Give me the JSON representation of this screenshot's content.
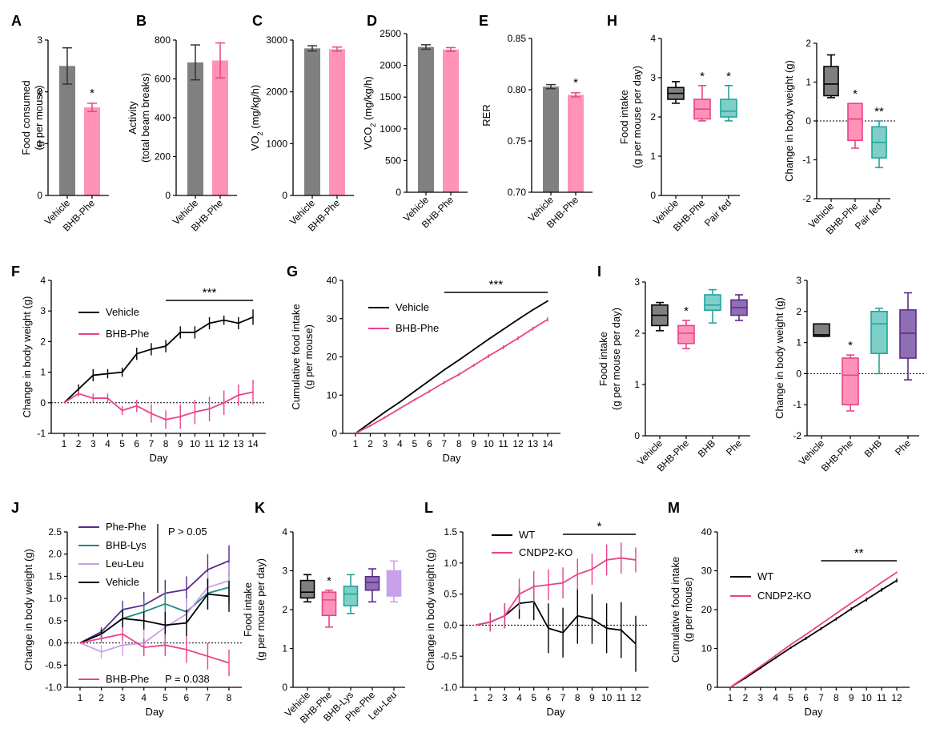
{
  "colors": {
    "vehicle": "#808080",
    "bhb_phe": "#ff93b7",
    "bhb_phe_dark": "#e8438a",
    "pair_fed": "#21a39d",
    "pair_fed_light": "#7fcfc9",
    "phe_dark": "#5b2a8c",
    "phe": "#8f6fb3",
    "leu_leu": "#c9a0ec",
    "bhb_lys": "#1f8a86",
    "wt": "#000000",
    "cndp2": "#e8438a"
  },
  "chart_data": [
    {
      "panel": "A",
      "type": "bar",
      "categories": [
        "Vehicle",
        "BHB-Phe"
      ],
      "values": [
        2.5,
        1.7
      ],
      "errors": [
        0.35,
        0.08
      ],
      "ylabel": "Food consumed (g per mouse)",
      "ylim": [
        0,
        3
      ],
      "yticks": [
        0,
        1,
        2,
        3
      ],
      "sig": [
        "",
        "*"
      ]
    },
    {
      "panel": "B",
      "type": "bar",
      "categories": [
        "Vehicle",
        "BHB-Phe"
      ],
      "values": [
        685,
        695
      ],
      "errors": [
        90,
        90
      ],
      "ylabel": "Activity (total beam breaks)",
      "ylim": [
        0,
        800
      ],
      "yticks": [
        0,
        200,
        400,
        600,
        800
      ],
      "sig": [
        "",
        ""
      ]
    },
    {
      "panel": "C",
      "type": "bar",
      "categories": [
        "Vehicle",
        "BHB-Phe"
      ],
      "values": [
        2840,
        2825
      ],
      "errors": [
        50,
        40
      ],
      "ylabel": "VO₂ (mg/kg/h)",
      "ylim": [
        0,
        3000
      ],
      "yticks": [
        0,
        1000,
        2000,
        3000
      ],
      "sig": [
        "",
        ""
      ]
    },
    {
      "panel": "D",
      "type": "bar",
      "categories": [
        "Vehicle",
        "BHB-Phe"
      ],
      "values": [
        2290,
        2250
      ],
      "errors": [
        35,
        30
      ],
      "ylabel": "VCO₂ (mg/kg/h)",
      "ylim": [
        0,
        2500
      ],
      "yticks": [
        0,
        500,
        1000,
        1500,
        2000,
        2500
      ],
      "sig": [
        "",
        ""
      ]
    },
    {
      "panel": "E",
      "type": "bar",
      "categories": [
        "Vehicle",
        "BHB-Phe"
      ],
      "values": [
        0.803,
        0.795
      ],
      "errors": [
        0.002,
        0.002
      ],
      "ylabel": "RER",
      "ylim": [
        0.7,
        0.85
      ],
      "yticks": [
        0.7,
        0.75,
        0.8,
        0.85
      ],
      "sig": [
        "",
        "*"
      ]
    },
    {
      "panel": "H1",
      "type": "box",
      "categories": [
        "Vehicle",
        "BHB-Phe",
        "Pair fed"
      ],
      "boxes": [
        [
          2.35,
          2.45,
          2.6,
          2.75,
          2.9
        ],
        [
          1.9,
          1.95,
          2.2,
          2.45,
          2.8
        ],
        [
          1.9,
          2.0,
          2.15,
          2.45,
          2.8
        ]
      ],
      "ylabel": "Food intake (g per mouse per day)",
      "ylim": [
        0,
        4
      ],
      "yticks": [
        0,
        1,
        2,
        3,
        4
      ],
      "sig": [
        "",
        "*",
        "*"
      ]
    },
    {
      "panel": "H2",
      "type": "box",
      "categories": [
        "Vehicle",
        "BHB-Phe",
        "Pair fed"
      ],
      "boxes": [
        [
          0.6,
          0.65,
          0.95,
          1.4,
          1.7
        ],
        [
          -0.7,
          -0.5,
          0.05,
          0.45,
          0.45
        ],
        [
          -1.2,
          -0.95,
          -0.55,
          -0.15,
          0.0
        ]
      ],
      "ylabel": "Change in body weight (g)",
      "ylim": [
        -2,
        2
      ],
      "yticks": [
        -2,
        -1,
        0,
        1,
        2
      ],
      "sig": [
        "",
        "*",
        "**"
      ]
    },
    {
      "panel": "F",
      "type": "line",
      "x": [
        1,
        2,
        3,
        4,
        5,
        6,
        7,
        8,
        9,
        10,
        11,
        12,
        13,
        14
      ],
      "series": [
        {
          "name": "Vehicle",
          "values": [
            0,
            0.45,
            0.9,
            0.95,
            1.0,
            1.6,
            1.75,
            1.85,
            2.3,
            2.3,
            2.6,
            2.7,
            2.6,
            2.8
          ],
          "err": [
            0,
            0.15,
            0.2,
            0.15,
            0.15,
            0.2,
            0.2,
            0.2,
            0.2,
            0.2,
            0.2,
            0.15,
            0.2,
            0.25
          ]
        },
        {
          "name": "BHB-Phe",
          "values": [
            0,
            0.3,
            0.15,
            0.15,
            -0.25,
            -0.1,
            -0.35,
            -0.55,
            -0.45,
            -0.3,
            -0.2,
            0.0,
            0.25,
            0.35
          ],
          "err": [
            0,
            0.1,
            0.15,
            0.15,
            0.15,
            0.2,
            0.3,
            0.3,
            0.4,
            0.4,
            0.4,
            0.4,
            0.35,
            0.4
          ]
        }
      ],
      "xlabel": "Day",
      "ylabel": "Change in body weight (g)",
      "ylim": [
        -1,
        4
      ],
      "yticks": [
        -1,
        0,
        1,
        2,
        3,
        4
      ],
      "sig": "***",
      "sig_from": 8,
      "sig_to": 14
    },
    {
      "panel": "G",
      "type": "line",
      "x": [
        1,
        2,
        3,
        4,
        5,
        6,
        7,
        8,
        9,
        10,
        11,
        12,
        13,
        14
      ],
      "series": [
        {
          "name": "Vehicle",
          "values": [
            0,
            2.8,
            5.6,
            8.2,
            11.0,
            13.8,
            16.6,
            19.2,
            21.9,
            24.6,
            27.2,
            29.8,
            32.3,
            34.6
          ],
          "err": [
            0,
            0.2,
            0.2,
            0.2,
            0.2,
            0.2,
            0.2,
            0.2,
            0.2,
            0.2,
            0.2,
            0.2,
            0.2,
            0.2
          ]
        },
        {
          "name": "BHB-Phe",
          "values": [
            0,
            2.0,
            4.2,
            6.5,
            8.8,
            11.0,
            13.3,
            15.4,
            17.8,
            20.2,
            22.5,
            24.9,
            27.4,
            29.8
          ],
          "err": [
            0,
            0.3,
            0.3,
            0.3,
            0.3,
            0.4,
            0.4,
            0.4,
            0.4,
            0.5,
            0.5,
            0.5,
            0.5,
            0.6
          ]
        }
      ],
      "xlabel": "Day",
      "ylabel": "Cumulative food intake (g per mouse)",
      "ylim": [
        0,
        40
      ],
      "yticks": [
        0,
        10,
        20,
        30,
        40
      ],
      "sig": "***",
      "sig_from": 7,
      "sig_to": 14
    },
    {
      "panel": "I1",
      "type": "box",
      "categories": [
        "Vehicle",
        "BHB-Phe",
        "BHB",
        "Phe"
      ],
      "boxes": [
        [
          2.05,
          2.15,
          2.35,
          2.55,
          2.6
        ],
        [
          1.7,
          1.8,
          2.0,
          2.15,
          2.25
        ],
        [
          2.2,
          2.45,
          2.55,
          2.75,
          2.85
        ],
        [
          2.25,
          2.35,
          2.5,
          2.65,
          2.75
        ]
      ],
      "ylabel": "Food intake (g per mouse per day)",
      "ylim": [
        0,
        3
      ],
      "yticks": [
        0,
        1,
        2,
        3
      ],
      "sig": [
        "",
        "*",
        "",
        ""
      ]
    },
    {
      "panel": "I2",
      "type": "box",
      "categories": [
        "Vehicle",
        "BHB-Phe",
        "BHB",
        "Phe"
      ],
      "boxes": [
        [
          1.2,
          1.2,
          1.25,
          1.6,
          1.6
        ],
        [
          -1.2,
          -1.0,
          -0.05,
          0.5,
          0.6
        ],
        [
          0.0,
          0.65,
          1.6,
          2.0,
          2.1
        ],
        [
          -0.2,
          0.5,
          1.3,
          2.05,
          2.6
        ]
      ],
      "ylabel": "Change in body weight (g)",
      "ylim": [
        -2,
        3
      ],
      "yticks": [
        -2,
        -1,
        0,
        1,
        2,
        3
      ],
      "sig": [
        "",
        "*",
        "",
        ""
      ]
    },
    {
      "panel": "J",
      "type": "line",
      "x": [
        1,
        2,
        3,
        4,
        5,
        6,
        7,
        8
      ],
      "series": [
        {
          "name": "Phe-Phe",
          "values": [
            0,
            0.25,
            0.75,
            0.85,
            1.12,
            1.2,
            1.65,
            1.85
          ],
          "err": [
            0,
            0.1,
            0.2,
            0.3,
            0.3,
            0.3,
            0.35,
            0.35
          ]
        },
        {
          "name": "BHB-Lys",
          "values": [
            0,
            0.2,
            0.55,
            0.7,
            0.88,
            0.7,
            1.12,
            1.25
          ],
          "err": [
            0,
            0.1,
            0.25,
            0.3,
            0.3,
            0.3,
            0.35,
            0.35
          ]
        },
        {
          "name": "Leu-Leu",
          "values": [
            0,
            -0.2,
            -0.05,
            0.0,
            0.35,
            0.65,
            1.25,
            1.4
          ],
          "err": [
            0,
            0.15,
            0.25,
            0.3,
            0.35,
            0.35,
            0.35,
            0.4
          ]
        },
        {
          "name": "Vehicle",
          "values": [
            0,
            0.2,
            0.55,
            0.5,
            0.4,
            0.45,
            1.1,
            1.05
          ],
          "err": [
            0,
            0.1,
            0.2,
            0.2,
            0.3,
            0.3,
            0.35,
            0.35
          ]
        },
        {
          "name": "BHB-Phe",
          "values": [
            0,
            0.1,
            0.2,
            -0.1,
            -0.05,
            -0.15,
            -0.3,
            -0.45
          ],
          "err": [
            0,
            0.1,
            0.15,
            0.2,
            0.25,
            0.3,
            0.3,
            0.3
          ]
        }
      ],
      "xlabel": "Day",
      "ylabel": "Change in body weight (g)",
      "ylim": [
        -1.0,
        2.5
      ],
      "yticks": [
        -1.0,
        -0.5,
        0.0,
        0.5,
        1.0,
        1.5,
        2.0,
        2.5
      ],
      "annotations": [
        "P > 0.05",
        "P = 0.038"
      ]
    },
    {
      "panel": "K",
      "type": "box",
      "categories": [
        "Vehicle",
        "BHB-Phe",
        "BHB-Lys",
        "Phe-Phe",
        "Leu-Leu"
      ],
      "boxes": [
        [
          2.2,
          2.3,
          2.45,
          2.75,
          2.9
        ],
        [
          1.55,
          1.85,
          2.25,
          2.45,
          2.5
        ],
        [
          1.9,
          2.1,
          2.4,
          2.6,
          2.9
        ],
        [
          2.2,
          2.5,
          2.7,
          2.85,
          3.05
        ],
        [
          2.2,
          2.35,
          2.65,
          3.0,
          3.25
        ]
      ],
      "ylabel": "Food intake (g per mouse per day)",
      "ylim": [
        0,
        4
      ],
      "yticks": [
        0,
        1,
        2,
        3,
        4
      ],
      "sig": [
        "",
        "*",
        "",
        "",
        ""
      ]
    },
    {
      "panel": "L",
      "type": "line",
      "x": [
        1,
        2,
        3,
        4,
        5,
        6,
        7,
        8,
        9,
        10,
        11,
        12
      ],
      "series": [
        {
          "name": "WT",
          "values": [
            0,
            0.05,
            0.15,
            0.35,
            0.38,
            -0.05,
            -0.12,
            0.15,
            0.1,
            -0.05,
            -0.08,
            -0.3
          ],
          "err": [
            0,
            0.15,
            0.2,
            0.25,
            0.3,
            0.4,
            0.4,
            0.45,
            0.4,
            0.4,
            0.45,
            0.45
          ]
        },
        {
          "name": "CNDP2-KO",
          "values": [
            0,
            0.05,
            0.15,
            0.5,
            0.62,
            0.65,
            0.68,
            0.82,
            0.9,
            1.05,
            1.08,
            1.05
          ],
          "err": [
            0,
            0.15,
            0.2,
            0.25,
            0.25,
            0.25,
            0.25,
            0.25,
            0.25,
            0.25,
            0.25,
            0.2
          ]
        }
      ],
      "xlabel": "Day",
      "ylabel": "Change in body weight (g)",
      "ylim": [
        -1.0,
        1.5
      ],
      "yticks": [
        -1.0,
        -0.5,
        0.0,
        0.5,
        1.0,
        1.5
      ],
      "sig": "*",
      "sig_from": 7,
      "sig_to": 12
    },
    {
      "panel": "M",
      "type": "line",
      "x": [
        1,
        2,
        3,
        4,
        5,
        6,
        7,
        8,
        9,
        10,
        11,
        12
      ],
      "series": [
        {
          "name": "WT",
          "values": [
            0,
            2.4,
            5.0,
            7.6,
            10.2,
            12.6,
            15.1,
            17.6,
            20.2,
            22.6,
            25.1,
            27.5
          ],
          "err": [
            0,
            0.3,
            0.3,
            0.3,
            0.3,
            0.4,
            0.4,
            0.4,
            0.4,
            0.5,
            0.5,
            0.5
          ]
        },
        {
          "name": "CNDP2-KO",
          "values": [
            0,
            2.7,
            5.4,
            8.2,
            11.0,
            13.6,
            16.3,
            19.0,
            21.7,
            24.3,
            27.0,
            29.6
          ],
          "err": [
            0,
            0.2,
            0.2,
            0.2,
            0.2,
            0.2,
            0.2,
            0.2,
            0.2,
            0.2,
            0.2,
            0.2
          ]
        }
      ],
      "xlabel": "Day",
      "ylabel": "Cumulative food intake (g per mouse)",
      "ylim": [
        0,
        40
      ],
      "yticks": [
        0,
        10,
        20,
        30,
        40
      ],
      "sig": "**",
      "sig_from": 7,
      "sig_to": 12
    }
  ]
}
